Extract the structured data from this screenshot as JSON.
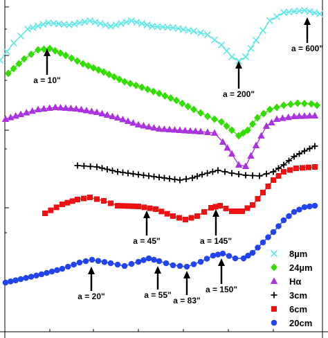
{
  "chart_data": {
    "type": "line",
    "xlabel": "",
    "ylabel": "",
    "grid": false,
    "legend_placement": "bottom-right",
    "series": [
      {
        "name": "8µm",
        "color": "#66e6e6",
        "marker": "x",
        "points": [
          [
            0,
            87
          ],
          [
            20,
            62
          ],
          [
            40,
            42
          ],
          [
            70,
            33
          ],
          [
            100,
            36
          ],
          [
            130,
            30
          ],
          [
            160,
            38
          ],
          [
            190,
            30
          ],
          [
            220,
            38
          ],
          [
            250,
            40
          ],
          [
            280,
            45
          ],
          [
            300,
            50
          ],
          [
            320,
            65
          ],
          [
            335,
            82
          ],
          [
            345,
            88
          ],
          [
            355,
            82
          ],
          [
            370,
            58
          ],
          [
            390,
            30
          ],
          [
            410,
            18
          ],
          [
            440,
            15
          ],
          [
            462,
            20
          ]
        ]
      },
      {
        "name": "24µm",
        "color": "#33dd00",
        "marker": "diamond",
        "points": [
          [
            12,
            106
          ],
          [
            35,
            85
          ],
          [
            55,
            72
          ],
          [
            72,
            70
          ],
          [
            95,
            80
          ],
          [
            120,
            92
          ],
          [
            150,
            104
          ],
          [
            180,
            118
          ],
          [
            205,
            126
          ],
          [
            230,
            135
          ],
          [
            255,
            145
          ],
          [
            280,
            158
          ],
          [
            300,
            168
          ],
          [
            320,
            176
          ],
          [
            335,
            188
          ],
          [
            345,
            196
          ],
          [
            358,
            188
          ],
          [
            372,
            170
          ],
          [
            390,
            158
          ],
          [
            410,
            152
          ],
          [
            430,
            149
          ],
          [
            450,
            150
          ],
          [
            458,
            152
          ]
        ]
      },
      {
        "name": "Hα",
        "color": "#aa33dd",
        "marker": "triangle",
        "points": [
          [
            8,
            172
          ],
          [
            30,
            165
          ],
          [
            55,
            158
          ],
          [
            80,
            155
          ],
          [
            110,
            157
          ],
          [
            140,
            162
          ],
          [
            170,
            170
          ],
          [
            200,
            180
          ],
          [
            230,
            186
          ],
          [
            260,
            188
          ],
          [
            290,
            190
          ],
          [
            310,
            192
          ],
          [
            322,
            205
          ],
          [
            335,
            222
          ],
          [
            345,
            238
          ],
          [
            355,
            240
          ],
          [
            370,
            210
          ],
          [
            385,
            182
          ],
          [
            400,
            172
          ],
          [
            425,
            168
          ],
          [
            455,
            167
          ]
        ]
      },
      {
        "name": "3cm",
        "color": "#000000",
        "marker": "plus",
        "points": [
          [
            112,
            239
          ],
          [
            140,
            241
          ],
          [
            170,
            248
          ],
          [
            200,
            252
          ],
          [
            230,
            256
          ],
          [
            260,
            260
          ],
          [
            278,
            257
          ],
          [
            292,
            252
          ],
          [
            315,
            246
          ],
          [
            335,
            250
          ],
          [
            355,
            253
          ],
          [
            375,
            254
          ],
          [
            395,
            248
          ],
          [
            410,
            238
          ],
          [
            425,
            226
          ],
          [
            440,
            218
          ],
          [
            455,
            211
          ]
        ]
      },
      {
        "name": "6cm",
        "color": "#ee1111",
        "marker": "square",
        "points": [
          [
            65,
            308
          ],
          [
            90,
            295
          ],
          [
            112,
            288
          ],
          [
            130,
            285
          ],
          [
            150,
            290
          ],
          [
            170,
            297
          ],
          [
            200,
            298
          ],
          [
            225,
            302
          ],
          [
            250,
            312
          ],
          [
            268,
            317
          ],
          [
            285,
            312
          ],
          [
            305,
            300
          ],
          [
            318,
            297
          ],
          [
            335,
            305
          ],
          [
            350,
            305
          ],
          [
            365,
            296
          ],
          [
            380,
            278
          ],
          [
            395,
            260
          ],
          [
            410,
            248
          ],
          [
            428,
            243
          ],
          [
            455,
            241
          ]
        ]
      },
      {
        "name": "20cm",
        "color": "#2244ee",
        "marker": "circle",
        "points": [
          [
            8,
            408
          ],
          [
            30,
            403
          ],
          [
            60,
            396
          ],
          [
            90,
            388
          ],
          [
            115,
            379
          ],
          [
            133,
            375
          ],
          [
            160,
            380
          ],
          [
            180,
            384
          ],
          [
            200,
            378
          ],
          [
            215,
            373
          ],
          [
            230,
            377
          ],
          [
            250,
            383
          ],
          [
            270,
            385
          ],
          [
            290,
            378
          ],
          [
            308,
            369
          ],
          [
            322,
            366
          ],
          [
            340,
            373
          ],
          [
            352,
            373
          ],
          [
            365,
            365
          ],
          [
            380,
            350
          ],
          [
            395,
            335
          ],
          [
            410,
            318
          ],
          [
            425,
            306
          ],
          [
            440,
            299
          ],
          [
            455,
            297
          ]
        ]
      }
    ],
    "annotations": [
      {
        "label": "a = 10\"",
        "tip": [
          68,
          70
        ],
        "tail": [
          68,
          108
        ]
      },
      {
        "label": "a = 200\"",
        "tip": [
          345,
          88
        ],
        "tail": [
          345,
          128
        ]
      },
      {
        "label": "a = 600\"",
        "tip": [
          444,
          25
        ],
        "tail": [
          444,
          62
        ]
      },
      {
        "label": "a = 45\"",
        "tip": [
          212,
          304
        ],
        "tail": [
          212,
          340
        ]
      },
      {
        "label": "a = 145\"",
        "tip": [
          312,
          302
        ],
        "tail": [
          312,
          340
        ]
      },
      {
        "label": "a = 20\"",
        "tip": [
          132,
          385
        ],
        "tail": [
          132,
          420
        ]
      },
      {
        "label": "a = 55\"",
        "tip": [
          228,
          384
        ],
        "tail": [
          228,
          418
        ]
      },
      {
        "label": "a = 83\"",
        "tip": [
          270,
          391
        ],
        "tail": [
          270,
          426
        ]
      },
      {
        "label": "a = 150\"",
        "tip": [
          320,
          373
        ],
        "tail": [
          320,
          410
        ]
      }
    ]
  }
}
